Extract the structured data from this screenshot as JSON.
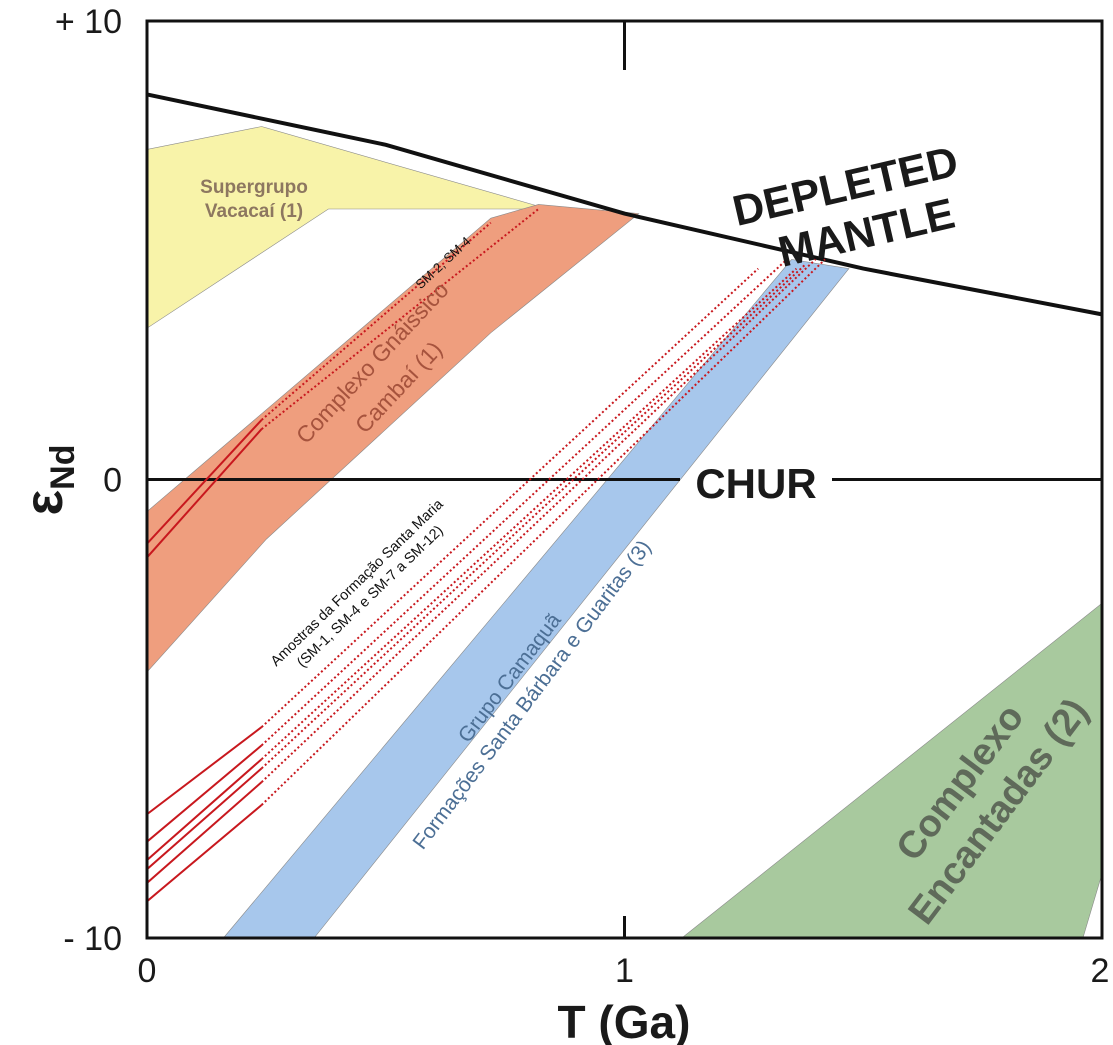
{
  "chart_data": {
    "type": "line",
    "xlabel": "T (Ga)",
    "ylabel": "εNd",
    "ylabel_symbol": "ε",
    "ylabel_sub": "Nd",
    "xlim": [
      0,
      2
    ],
    "ylim": [
      -10,
      10
    ],
    "x_ticks": [
      {
        "value": 0,
        "label": "0"
      },
      {
        "value": 1,
        "label": "1"
      },
      {
        "value": 2,
        "label": "2"
      }
    ],
    "y_ticks": [
      {
        "value": 10,
        "label": "+ 10"
      },
      {
        "value": 0,
        "label": "0"
      },
      {
        "value": -10,
        "label": "- 10"
      }
    ],
    "reference_lines": [
      {
        "name": "CHUR",
        "label": "CHUR",
        "points": [
          [
            0,
            0
          ],
          [
            2,
            0
          ]
        ]
      },
      {
        "name": "depleted-mantle",
        "label_lines": [
          "DEPLETED",
          "MANTLE"
        ],
        "points": [
          [
            0,
            8.4
          ],
          [
            0.5,
            7.3
          ],
          [
            1.0,
            5.8
          ],
          [
            1.5,
            4.6
          ],
          [
            2.0,
            3.6
          ]
        ]
      }
    ],
    "regions": [
      {
        "name": "supergrupo-vacacai",
        "label_lines": [
          "Supergrupo",
          "Vacacaí (1)"
        ],
        "color": "#f8f3a9",
        "label_color": "#8d7760",
        "polygon": [
          [
            0,
            7.2
          ],
          [
            0.24,
            7.7
          ],
          [
            0.84,
            5.9
          ],
          [
            0.38,
            5.9
          ],
          [
            0,
            3.3
          ]
        ]
      },
      {
        "name": "complexo-gnaissico-cambai",
        "label_lines": [
          "Complexo Gnáissico",
          "Cambaí (1)"
        ],
        "color": "#ef9e7e",
        "label_color": "#a6533d",
        "polygon": [
          [
            0,
            -0.7
          ],
          [
            0.72,
            5.7
          ],
          [
            0.82,
            6.0
          ],
          [
            1.03,
            5.8
          ],
          [
            0.72,
            3.2
          ],
          [
            0.25,
            -1.3
          ],
          [
            0,
            -4.2
          ]
        ]
      },
      {
        "name": "grupo-camaqua",
        "label_lines": [
          "Grupo Camaquã",
          "Formações Santa Bárbara e Guaritas (3)"
        ],
        "color": "#a7c7ec",
        "label_color": "#4c6f95",
        "polygon": [
          [
            0.16,
            -10
          ],
          [
            1.35,
            4.8
          ],
          [
            1.47,
            4.6
          ],
          [
            0.35,
            -10
          ]
        ]
      },
      {
        "name": "complexo-encantadas",
        "label_lines": [
          "Complexo",
          "Encantadas (2)"
        ],
        "color": "#a8c99e",
        "label_color": "#5f6a5a",
        "polygon": [
          [
            1.12,
            -10
          ],
          [
            2.0,
            -2.7
          ],
          [
            2.0,
            -8.6
          ],
          [
            1.96,
            -10
          ]
        ]
      }
    ],
    "sample_annotations": [
      {
        "name": "sm-2-sm-4",
        "text": "SM-2, SM-4"
      },
      {
        "name": "santa-maria",
        "lines": [
          "Amostras da Formação Santa Maria",
          "(SM-1, SM-4 e SM-7 a SM-12)"
        ]
      }
    ],
    "sample_series": [
      {
        "group": "sm-2-sm-4",
        "solid": [
          [
            0,
            -1.4
          ],
          [
            0.24,
            1.3
          ]
        ],
        "dotted": [
          [
            0.24,
            1.3
          ],
          [
            0.72,
            5.6
          ]
        ]
      },
      {
        "group": "sm-2-sm-4",
        "solid": [
          [
            0,
            -1.7
          ],
          [
            0.24,
            1.1
          ]
        ],
        "dotted": [
          [
            0.24,
            1.1
          ],
          [
            0.82,
            5.9
          ]
        ]
      },
      {
        "group": "santa-maria",
        "solid": [
          [
            0,
            -7.3
          ],
          [
            0.24,
            -5.4
          ]
        ],
        "dotted": [
          [
            0.24,
            -5.4
          ],
          [
            1.28,
            4.6
          ]
        ]
      },
      {
        "group": "santa-maria",
        "solid": [
          [
            0,
            -7.9
          ],
          [
            0.24,
            -5.8
          ]
        ],
        "dotted": [
          [
            0.24,
            -5.8
          ],
          [
            1.34,
            4.8
          ]
        ]
      },
      {
        "group": "santa-maria",
        "solid": [
          [
            0,
            -8.3
          ],
          [
            0.24,
            -6.1
          ]
        ],
        "dotted": [
          [
            0.24,
            -6.1
          ],
          [
            1.36,
            4.6
          ]
        ]
      },
      {
        "group": "santa-maria",
        "solid": [
          [
            0,
            -8.5
          ],
          [
            0.24,
            -6.3
          ]
        ],
        "dotted": [
          [
            0.24,
            -6.3
          ],
          [
            1.38,
            4.7
          ]
        ]
      },
      {
        "group": "santa-maria",
        "solid": [
          [
            0,
            -8.8
          ],
          [
            0.24,
            -6.6
          ]
        ],
        "dotted": [
          [
            0.24,
            -6.6
          ],
          [
            1.4,
            4.8
          ]
        ]
      },
      {
        "group": "santa-maria",
        "solid": [
          [
            0,
            -9.2
          ],
          [
            0.24,
            -7.1
          ]
        ],
        "dotted": [
          [
            0.24,
            -7.1
          ],
          [
            1.42,
            4.8
          ]
        ]
      }
    ],
    "colors": {
      "samples": "#c8181e",
      "axis": "#111111"
    },
    "grid": false,
    "legend": "none"
  }
}
